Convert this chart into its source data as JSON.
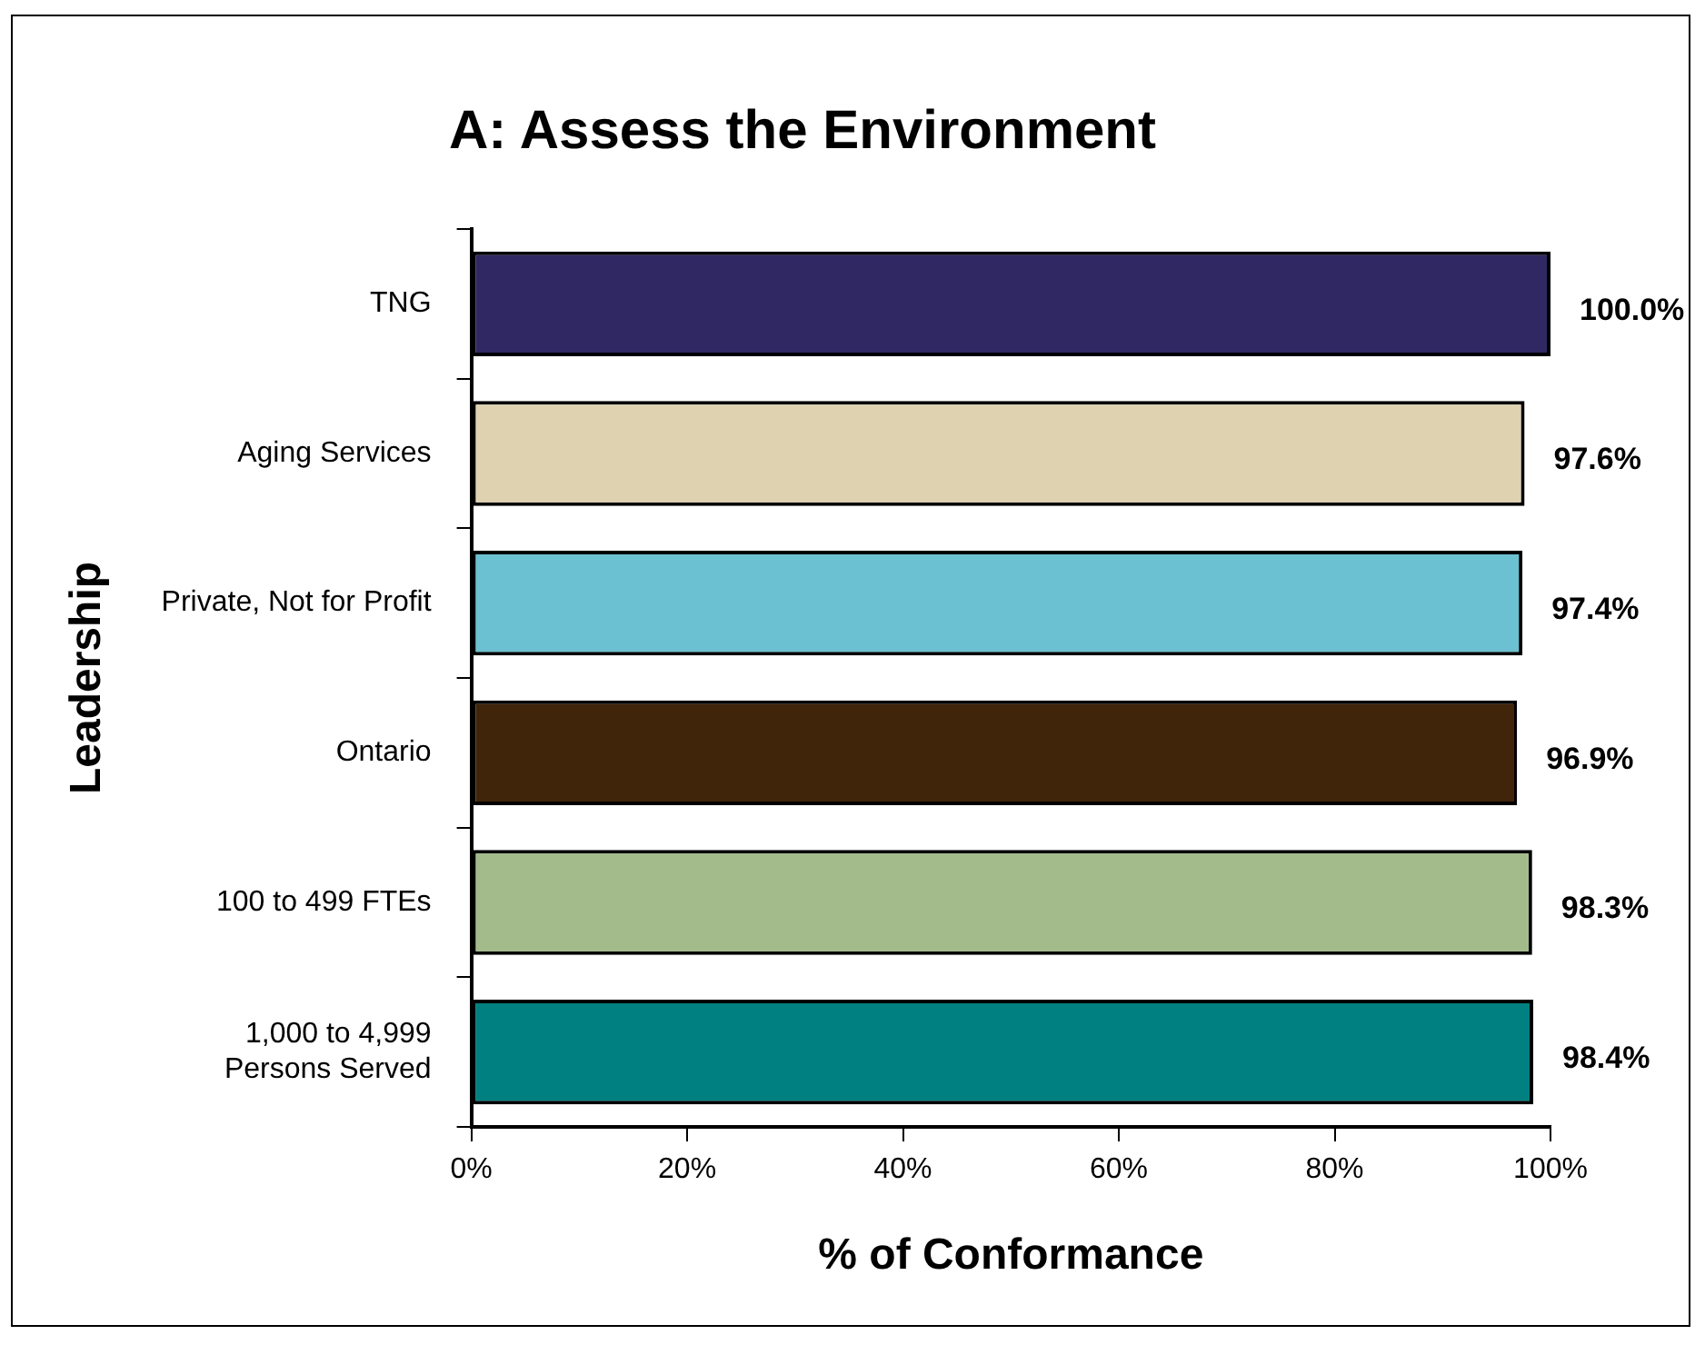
{
  "chart_data": {
    "type": "bar",
    "orientation": "horizontal",
    "title": "A: Assess the Environment",
    "xlabel": "% of Conformance",
    "ylabel": "Leadership",
    "categories": [
      "TNG",
      "Aging Services",
      "Private, Not for Profit",
      "Ontario",
      "100 to 499 FTEs",
      "1,000 to 4,999 Persons Served"
    ],
    "values": [
      100,
      97.6,
      97.4,
      96.9,
      98.3,
      98.4
    ],
    "colors": [
      "#2f2862",
      "#dfd2b0",
      "#6bc0d1",
      "#40250a",
      "#a3ba8a",
      "#008080"
    ],
    "value_labels": [
      "100.0%",
      "97.6%",
      "97.4%",
      "96.9%",
      "98.3%",
      "98.4%"
    ],
    "xlim": [
      0,
      100
    ],
    "xticks": [
      {
        "value": 0,
        "label": "0%"
      },
      {
        "value": 20,
        "label": "20%"
      },
      {
        "value": 40,
        "label": "40%"
      },
      {
        "value": 60,
        "label": "60%"
      },
      {
        "value": 80,
        "label": "80%"
      },
      {
        "value": 100,
        "label": "100%"
      }
    ],
    "grid": false,
    "legend": false
  }
}
